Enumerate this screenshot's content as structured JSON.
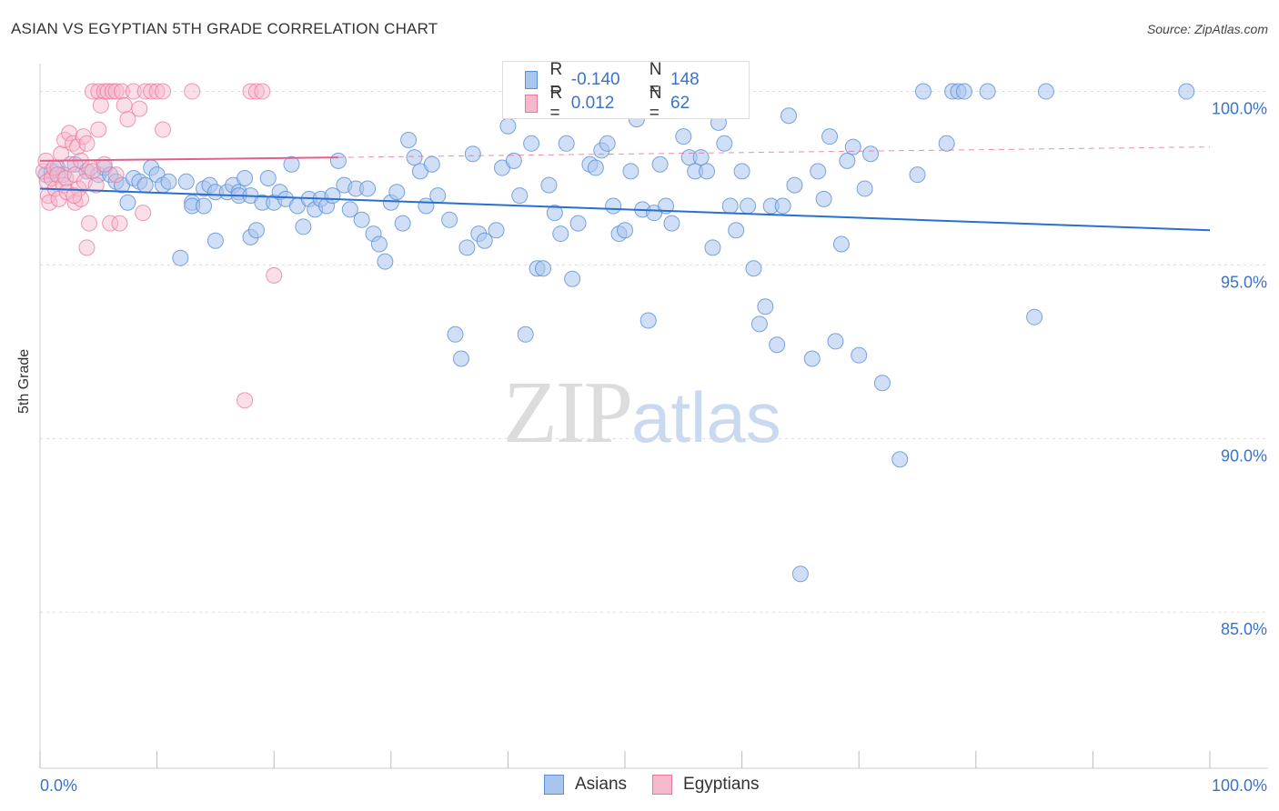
{
  "title": "ASIAN VS EGYPTIAN 5TH GRADE CORRELATION CHART",
  "source": "Source: ZipAtlas.com",
  "legend": {
    "rows": [
      {
        "r_label": "R =",
        "r_value": "-0.140",
        "n_label": "N =",
        "n_value": "148"
      },
      {
        "r_label": "R =",
        "r_value": "0.012",
        "n_label": "N =",
        "n_value": "62"
      }
    ]
  },
  "bottom_legend": [
    "Asians",
    "Egyptians"
  ],
  "watermark": {
    "zip": "ZIP",
    "atlas": "atlas"
  },
  "colors": {
    "asian_fill": "#a9c5ee",
    "asian_stroke": "#5b8fd6",
    "asian_line": "#2a6fcf",
    "egypt_fill": "#f6b8cb",
    "egypt_stroke": "#e8789c",
    "egypt_line": "#e0608a",
    "axis_text": "#3b73c9",
    "grid": "#dddddd"
  },
  "chart_data": {
    "type": "scatter",
    "title": "ASIAN VS EGYPTIAN 5TH GRADE CORRELATION CHART",
    "xlabel": "",
    "ylabel": "5th Grade",
    "xlim": [
      0,
      100
    ],
    "ylim": [
      80.5,
      100.8
    ],
    "x_tick_labels": [
      "0.0%",
      "100.0%"
    ],
    "y_ticks": [
      100,
      95,
      90,
      85
    ],
    "y_tick_labels": [
      "100.0%",
      "95.0%",
      "90.0%",
      "85.0%"
    ],
    "grid": "horizontal dashed",
    "legend_position": "top-center",
    "series": [
      {
        "name": "Asians",
        "r": -0.14,
        "n": 148,
        "trend": {
          "x": [
            0,
            100
          ],
          "y": [
            97.2,
            96.0
          ]
        },
        "points": [
          [
            0.5,
            97.6
          ],
          [
            1,
            97.7
          ],
          [
            1.5,
            97.8
          ],
          [
            2,
            97.6
          ],
          [
            3,
            97.9
          ],
          [
            4,
            97.7
          ],
          [
            5,
            97.6
          ],
          [
            5.5,
            97.8
          ],
          [
            6,
            97.6
          ],
          [
            6.5,
            97.4
          ],
          [
            7,
            97.3
          ],
          [
            7.5,
            96.8
          ],
          [
            8,
            97.5
          ],
          [
            8.5,
            97.4
          ],
          [
            9,
            97.3
          ],
          [
            9.5,
            97.8
          ],
          [
            10,
            97.6
          ],
          [
            10.5,
            97.3
          ],
          [
            11,
            97.4
          ],
          [
            12,
            95.2
          ],
          [
            12.5,
            97.4
          ],
          [
            13,
            96.8
          ],
          [
            13,
            96.7
          ],
          [
            14,
            96.7
          ],
          [
            14,
            97.2
          ],
          [
            14.5,
            97.3
          ],
          [
            15,
            95.7
          ],
          [
            15,
            97.1
          ],
          [
            16,
            97.1
          ],
          [
            16.5,
            97.3
          ],
          [
            17,
            97.1
          ],
          [
            17,
            97.0
          ],
          [
            17.5,
            97.5
          ],
          [
            18,
            97.0
          ],
          [
            18,
            95.8
          ],
          [
            18.5,
            96.0
          ],
          [
            19,
            96.8
          ],
          [
            19.5,
            97.5
          ],
          [
            20,
            96.8
          ],
          [
            20.5,
            97.1
          ],
          [
            21,
            96.9
          ],
          [
            21.5,
            97.9
          ],
          [
            22,
            96.7
          ],
          [
            22.5,
            96.1
          ],
          [
            23,
            96.9
          ],
          [
            23.5,
            96.6
          ],
          [
            24,
            96.9
          ],
          [
            24.5,
            96.7
          ],
          [
            25,
            97.0
          ],
          [
            25.5,
            98.0
          ],
          [
            26,
            97.3
          ],
          [
            26.5,
            96.6
          ],
          [
            27,
            97.2
          ],
          [
            27.5,
            96.3
          ],
          [
            28,
            97.2
          ],
          [
            28.5,
            95.9
          ],
          [
            29,
            95.6
          ],
          [
            29.5,
            95.1
          ],
          [
            30,
            96.8
          ],
          [
            30.5,
            97.1
          ],
          [
            31,
            96.2
          ],
          [
            31.5,
            98.6
          ],
          [
            32,
            98.1
          ],
          [
            32.5,
            97.7
          ],
          [
            33,
            96.7
          ],
          [
            33.5,
            97.9
          ],
          [
            34,
            97.0
          ],
          [
            35,
            96.3
          ],
          [
            35.5,
            93.0
          ],
          [
            36,
            92.3
          ],
          [
            36.5,
            95.5
          ],
          [
            37,
            98.2
          ],
          [
            37.5,
            95.9
          ],
          [
            38,
            95.7
          ],
          [
            39,
            96.0
          ],
          [
            39.5,
            97.8
          ],
          [
            40,
            99.0
          ],
          [
            40.5,
            98.0
          ],
          [
            41,
            97.0
          ],
          [
            41.5,
            93.0
          ],
          [
            42,
            98.5
          ],
          [
            42.5,
            94.9
          ],
          [
            43,
            94.9
          ],
          [
            43.5,
            97.3
          ],
          [
            44,
            96.5
          ],
          [
            44.5,
            95.9
          ],
          [
            45,
            98.5
          ],
          [
            45.5,
            94.6
          ],
          [
            46,
            96.2
          ],
          [
            47,
            97.9
          ],
          [
            47.5,
            97.8
          ],
          [
            48,
            98.3
          ],
          [
            48.5,
            98.5
          ],
          [
            49,
            96.7
          ],
          [
            49.5,
            95.9
          ],
          [
            50,
            96.0
          ],
          [
            50.5,
            97.7
          ],
          [
            51,
            99.2
          ],
          [
            51.5,
            96.6
          ],
          [
            52,
            93.4
          ],
          [
            52.5,
            96.5
          ],
          [
            53,
            97.9
          ],
          [
            53.5,
            96.7
          ],
          [
            54,
            96.2
          ],
          [
            55,
            98.7
          ],
          [
            55.5,
            98.1
          ],
          [
            56,
            97.7
          ],
          [
            56.5,
            98.1
          ],
          [
            57,
            97.7
          ],
          [
            57.5,
            95.5
          ],
          [
            58,
            99.1
          ],
          [
            58.5,
            98.5
          ],
          [
            59,
            96.7
          ],
          [
            59.5,
            96.0
          ],
          [
            60,
            97.7
          ],
          [
            60.5,
            96.7
          ],
          [
            61,
            94.9
          ],
          [
            61.5,
            93.3
          ],
          [
            62,
            93.8
          ],
          [
            62.5,
            96.7
          ],
          [
            63,
            92.7
          ],
          [
            63.5,
            96.7
          ],
          [
            64,
            99.3
          ],
          [
            64.5,
            97.3
          ],
          [
            65,
            86.1
          ],
          [
            66,
            92.3
          ],
          [
            66.5,
            97.7
          ],
          [
            67,
            96.9
          ],
          [
            67.5,
            98.7
          ],
          [
            68,
            92.8
          ],
          [
            68.5,
            95.6
          ],
          [
            69,
            98.0
          ],
          [
            69.5,
            98.4
          ],
          [
            70,
            92.4
          ],
          [
            71,
            98.2
          ],
          [
            70.5,
            97.2
          ],
          [
            72,
            91.6
          ],
          [
            73.5,
            89.4
          ],
          [
            75,
            97.6
          ],
          [
            75.5,
            100.0
          ],
          [
            78,
            100.0
          ],
          [
            78.5,
            100.0
          ],
          [
            79,
            100.0
          ],
          [
            81,
            100.0
          ],
          [
            77.5,
            98.5
          ],
          [
            85,
            93.5
          ],
          [
            86,
            100.0
          ],
          [
            98,
            100.0
          ]
        ]
      },
      {
        "name": "Egyptians",
        "r": 0.012,
        "n": 62,
        "trend": {
          "x": [
            0,
            25.5
          ],
          "y": [
            98.0,
            98.1
          ]
        },
        "trend_dashed": {
          "x": [
            25.5,
            100
          ],
          "y": [
            98.1,
            98.4
          ]
        },
        "points": [
          [
            0.3,
            97.7
          ],
          [
            0.5,
            98.0
          ],
          [
            0.6,
            97.4
          ],
          [
            0.7,
            97.0
          ],
          [
            0.8,
            96.8
          ],
          [
            1,
            97.5
          ],
          [
            1.2,
            97.8
          ],
          [
            1.3,
            97.2
          ],
          [
            1.5,
            97.6
          ],
          [
            1.6,
            96.9
          ],
          [
            1.8,
            98.2
          ],
          [
            2,
            97.3
          ],
          [
            2.1,
            98.6
          ],
          [
            2.2,
            97.5
          ],
          [
            2.3,
            97.1
          ],
          [
            2.5,
            98.8
          ],
          [
            2.6,
            97.9
          ],
          [
            2.8,
            98.5
          ],
          [
            3,
            97.6
          ],
          [
            3,
            96.8
          ],
          [
            3.2,
            98.4
          ],
          [
            3.3,
            97.2
          ],
          [
            3.5,
            96.9
          ],
          [
            3.5,
            98.0
          ],
          [
            3.7,
            98.7
          ],
          [
            3.8,
            97.4
          ],
          [
            4,
            98.5
          ],
          [
            4,
            95.5
          ],
          [
            4.2,
            96.2
          ],
          [
            4.3,
            97.8
          ],
          [
            4.5,
            97.7
          ],
          [
            4.5,
            100.0
          ],
          [
            4.8,
            97.3
          ],
          [
            5,
            98.9
          ],
          [
            5,
            100.0
          ],
          [
            5.2,
            99.6
          ],
          [
            5.5,
            100.0
          ],
          [
            5.5,
            97.9
          ],
          [
            5.8,
            100.0
          ],
          [
            6,
            96.2
          ],
          [
            6.2,
            100.0
          ],
          [
            6.5,
            97.6
          ],
          [
            6.5,
            100.0
          ],
          [
            6.8,
            96.2
          ],
          [
            7,
            100.0
          ],
          [
            7.2,
            99.6
          ],
          [
            7.5,
            99.2
          ],
          [
            8,
            100.0
          ],
          [
            8.5,
            99.5
          ],
          [
            8.8,
            96.5
          ],
          [
            9,
            100.0
          ],
          [
            9.5,
            100.0
          ],
          [
            10,
            100.0
          ],
          [
            10.5,
            100.0
          ],
          [
            10.5,
            98.9
          ],
          [
            13,
            100.0
          ],
          [
            17.5,
            91.1
          ],
          [
            18,
            100.0
          ],
          [
            18.5,
            100.0
          ],
          [
            19,
            100.0
          ],
          [
            20,
            94.7
          ],
          [
            2.9,
            97.0
          ]
        ]
      }
    ]
  }
}
